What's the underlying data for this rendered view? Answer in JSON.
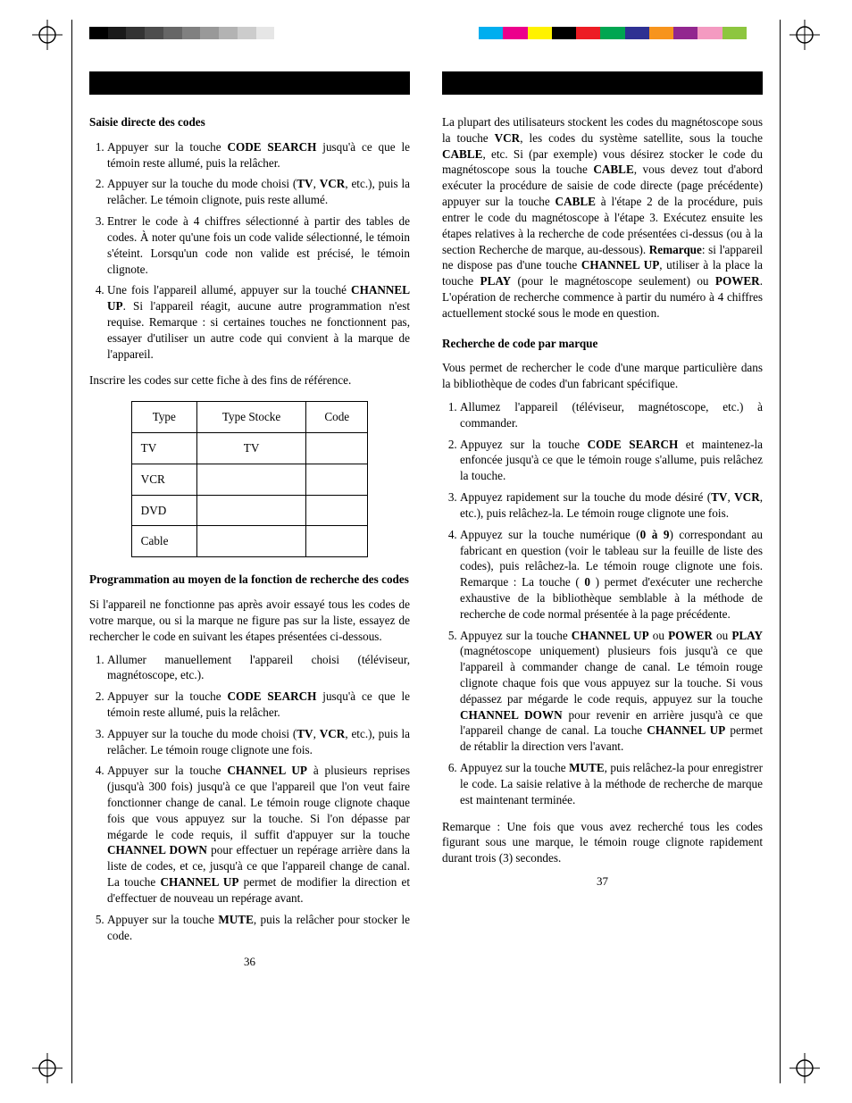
{
  "grayscale_colors": [
    "#000000",
    "#1a1a1a",
    "#333333",
    "#4d4d4d",
    "#666666",
    "#808080",
    "#999999",
    "#b3b3b3",
    "#cccccc",
    "#e6e6e6",
    "#ffffff"
  ],
  "rainbow_colors": [
    "#00aeef",
    "#ec008c",
    "#fff200",
    "#000000",
    "#ed1c24",
    "#00a651",
    "#2e3192",
    "#f7941d",
    "#92278f",
    "#f49ac1",
    "#8dc63f"
  ],
  "left": {
    "h1": "Saisie directe des codes",
    "list1": [
      {
        "pre": "Appuyer sur la touche ",
        "b": "CODE SEARCH",
        "post": " jusqu'à ce que le témoin reste allumé, puis la relâcher."
      },
      {
        "pre": "Appuyer sur la touche du mode choisi (",
        "b": "TV",
        "mid": ", ",
        "b2": "VCR",
        "post": ", etc.), puis la relâcher. Le témoin clignote, puis reste allumé."
      },
      {
        "text": "Entrer le code à 4 chiffres sélectionné à partir des tables de codes. À noter qu'une fois un code valide sélectionné, le témoin s'éteint. Lorsqu'un code non valide est précisé, le témoin clignote."
      },
      {
        "pre": "Une fois l'appareil allumé, appuyer sur la touché ",
        "b": "CHANNEL UP",
        "post": ". Si l'appareil réagit, aucune autre programmation n'est requise. Remarque : si certaines touches ne fonctionnent pas, essayer d'utiliser un autre code qui convient à la marque de l'appareil."
      }
    ],
    "p1": "Inscrire les codes sur cette fiche à des fins de référence.",
    "table": {
      "headers": [
        "Type",
        "Type Stocke",
        "Code"
      ],
      "rows": [
        [
          "TV",
          "TV",
          ""
        ],
        [
          "VCR",
          "",
          ""
        ],
        [
          "DVD",
          "",
          ""
        ],
        [
          "Cable",
          "",
          ""
        ]
      ]
    },
    "h2": "Programmation au moyen de la fonction de recherche des codes",
    "p2": "Si l'appareil ne fonctionne pas après avoir essayé tous les codes de votre marque, ou si la marque ne figure pas sur la liste, essayez de rechercher le code en suivant les étapes présentées ci-dessous.",
    "list2": [
      {
        "text": "Allumer manuellement l'appareil choisi (téléviseur, magnétoscope, etc.)."
      },
      {
        "pre": "Appuyer sur la touche ",
        "b": "CODE SEARCH",
        "post": " jusqu'à ce que le témoin reste allumé, puis la relâcher."
      },
      {
        "pre": "Appuyer sur la touche du mode choisi (",
        "b": "TV",
        "mid": ", ",
        "b2": "VCR",
        "post": ", etc.), puis la relâcher. Le témoin rouge clignote une fois."
      },
      {
        "pre": "Appuyer sur la touche ",
        "b": "CHANNEL UP",
        "mid": " à plusieurs reprises (jusqu'à 300 fois) jusqu'à ce que l'appareil que l'on veut faire fonctionner change de canal. Le témoin rouge clignote chaque fois que vous appuyez sur la touche. Si l'on dépasse par mégarde le code requis, il suffit d'appuyer sur la touche ",
        "b2": "CHANNEL DOWN",
        "mid2": " pour effectuer un repérage arrière dans la liste de codes, et ce, jusqu'à ce que l'appareil change de canal. La touche ",
        "b3": "CHANNEL UP",
        "post": " permet de modifier la direction et d'effectuer de nouveau un repérage avant."
      },
      {
        "pre": "Appuyer sur la touche ",
        "b": "MUTE",
        "post": ", puis la relâcher pour stocker le code."
      }
    ],
    "pagenum": "36"
  },
  "right": {
    "p1_segments": [
      {
        "t": "La plupart des utilisateurs stockent les codes du magnétoscope sous la touche "
      },
      {
        "b": "VCR"
      },
      {
        "t": ", les codes du système satellite, sous la touche "
      },
      {
        "b": "CABLE"
      },
      {
        "t": ", etc. Si (par exemple) vous désirez stocker le code du magnétoscope sous la touche "
      },
      {
        "b": "CABLE"
      },
      {
        "t": ", vous devez tout d'abord exécuter la procédure de saisie de code directe (page précédente) appuyer sur la touche "
      },
      {
        "b": "CABLE"
      },
      {
        "t": " à l'étape 2 de la procédure, puis entrer le code du magnétoscope à l'étape 3. Exécutez ensuite les étapes relatives à la recherche de code présentées ci-dessus (ou à la section Recherche de marque, au-dessous). "
      },
      {
        "b": "Remarque"
      },
      {
        "t": ": si l'appareil ne dispose pas d'une touche "
      },
      {
        "b": "CHANNEL UP"
      },
      {
        "t": ", utiliser à la place la touche "
      },
      {
        "b": "PLAY"
      },
      {
        "t": " (pour le magnétoscope seulement) ou "
      },
      {
        "b": "POWER"
      },
      {
        "t": ". L'opération de recherche commence à partir du numéro à 4 chiffres actuellement stocké sous le mode en question."
      }
    ],
    "h1": "Recherche de code par marque",
    "p2": "Vous permet de rechercher le code d'une marque particulière dans la bibliothèque de codes d'un fabricant spécifique.",
    "list1": [
      {
        "text": "Allumez l'appareil (téléviseur, magnétoscope, etc.) à commander."
      },
      {
        "pre": "Appuyez sur la touche ",
        "b": "CODE SEARCH",
        "post": " et maintenez-la enfoncée jusqu'à ce que le témoin rouge s'allume, puis relâchez la touche."
      },
      {
        "pre": "Appuyez rapidement sur la touche du mode désiré (",
        "b": "TV",
        "mid": ", ",
        "b2": "VCR",
        "post": ", etc.), puis relâchez-la. Le témoin rouge clignote une fois."
      },
      {
        "pre": "Appuyez sur la touche numérique (",
        "b": "0 à 9",
        "mid": ") correspondant au fabricant en question (voir le tableau sur la feuille de liste des codes), puis relâchez-la. Le témoin rouge clignote une fois. Remarque : La touche ( ",
        "b2": "0",
        "post": " ) permet d'exécuter une recherche exhaustive de la bibliothèque semblable à la méthode de recherche de code normal présentée à la page précédente."
      },
      {
        "pre": "Appuyez sur la touche ",
        "b": "CHANNEL UP",
        "mid": " ou ",
        "b2": "POWER",
        "mid2": " ou ",
        "b3": "PLAY",
        "mid3": " (magnétoscope uniquement) plusieurs fois jusqu'à ce que l'appareil à commander change de canal. Le témoin rouge clignote chaque fois que vous appuyez sur la touche. Si vous dépassez par mégarde le code requis, appuyez sur la touche ",
        "b4": "CHANNEL DOWN",
        "mid4": " pour revenir en arrière jusqu'à ce que l'appareil change de canal. La touche ",
        "b5": "CHANNEL UP",
        "post": " permet de rétablir la direction vers l'avant."
      },
      {
        "pre": "Appuyez sur la touche ",
        "b": "MUTE",
        "post": ", puis relâchez-la pour enregistrer le code. La saisie relative à la méthode de recherche de marque est maintenant terminée."
      }
    ],
    "p3": "Remarque : Une fois que vous avez recherché tous les codes figurant sous une marque, le témoin rouge clignote rapidement durant trois (3) secondes.",
    "pagenum": "37"
  }
}
